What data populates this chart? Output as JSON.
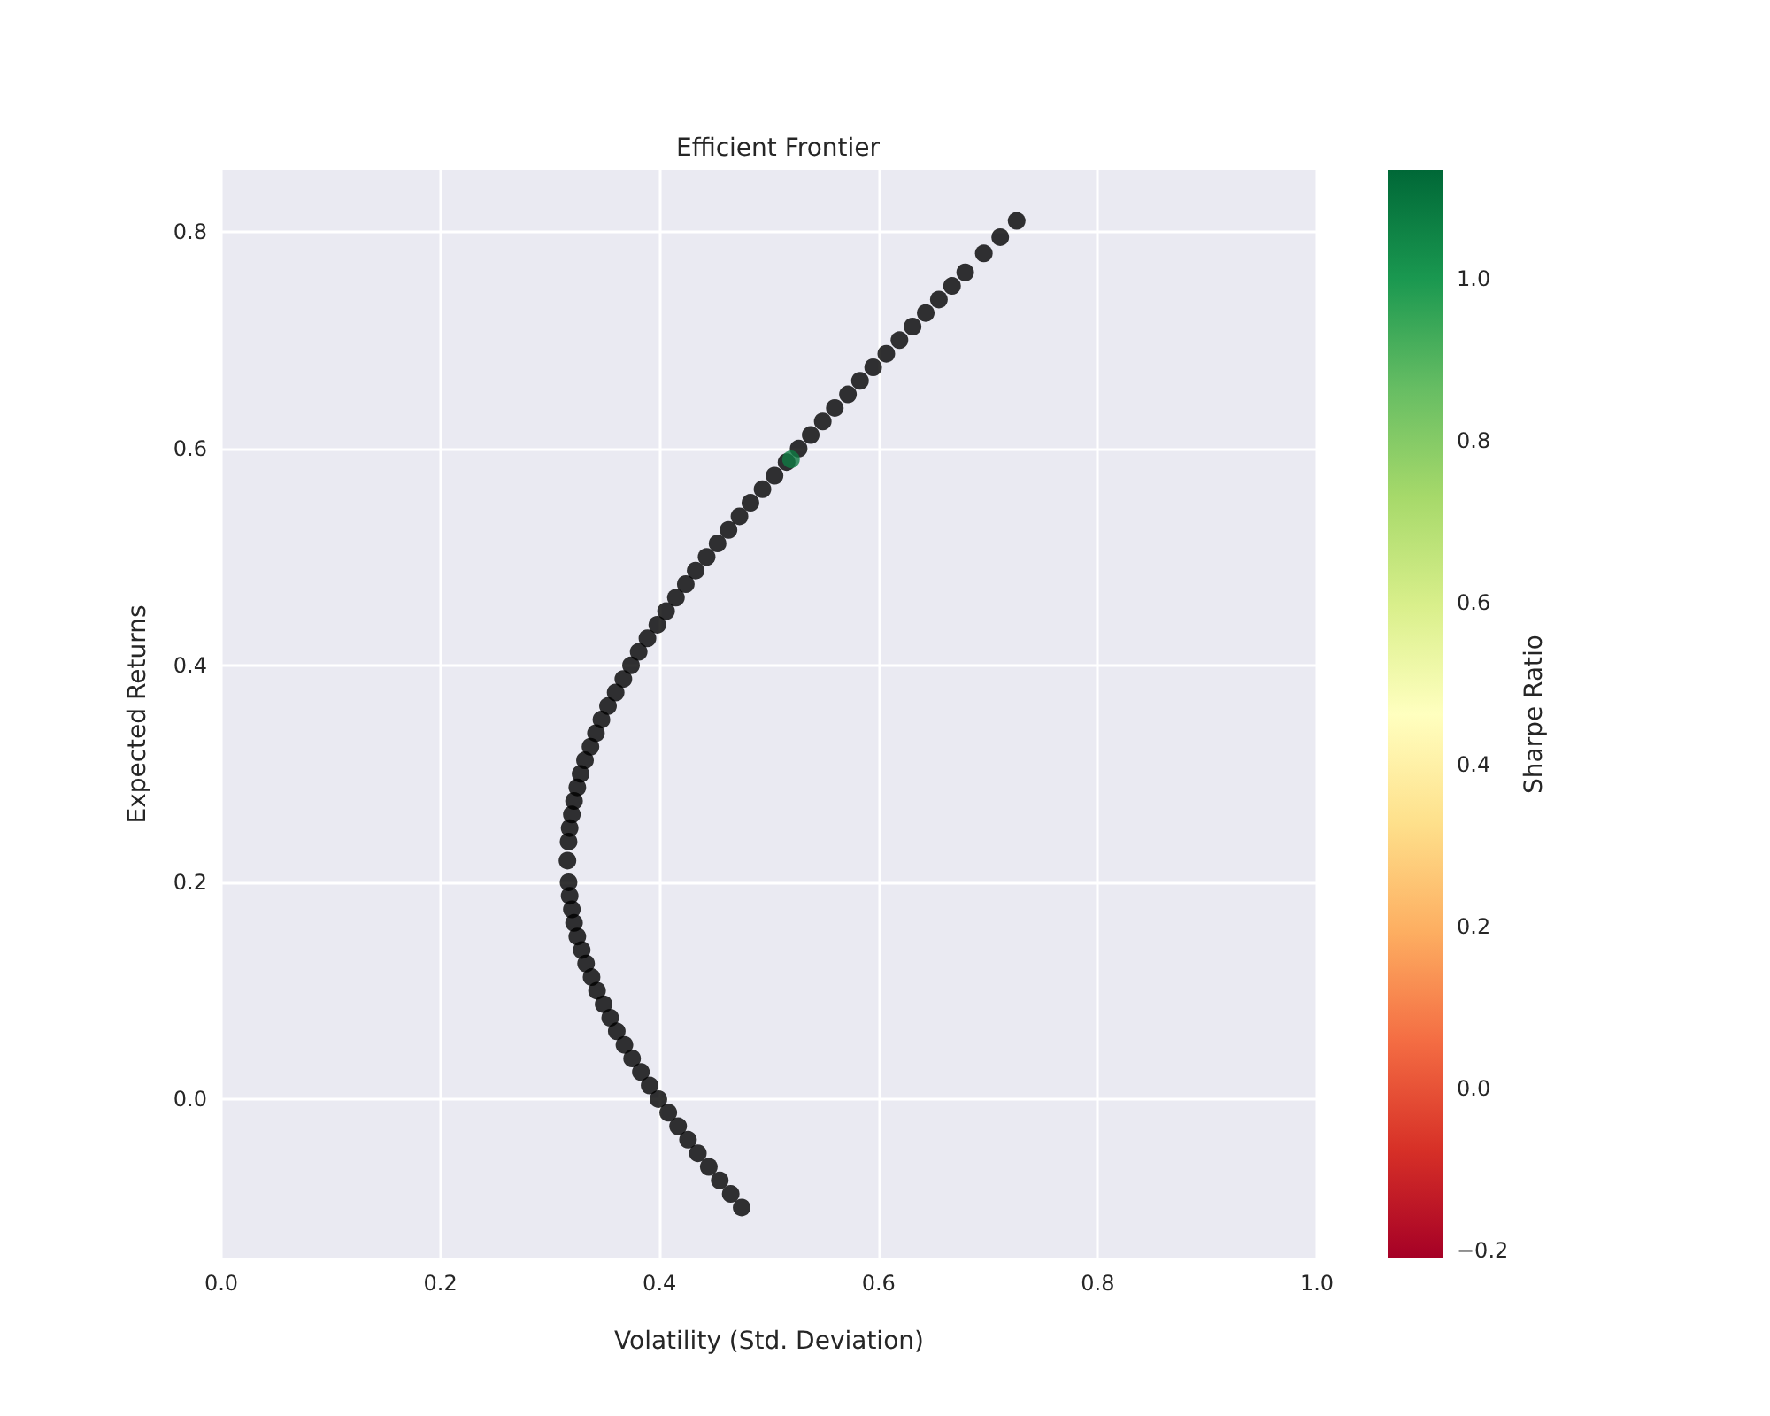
{
  "chart_data": {
    "type": "scatter",
    "title": "Efficient Frontier",
    "xlabel": "Volatility (Std. Deviation)",
    "ylabel": "Expected Returns",
    "clabel": "Sharpe Ratio",
    "xlim": [
      0,
      1
    ],
    "xticks": [
      {
        "value": 0,
        "label": "0.0"
      },
      {
        "value": 0.2,
        "label": "0.2"
      },
      {
        "value": 0.4,
        "label": "0.4"
      },
      {
        "value": 0.6,
        "label": "0.6"
      },
      {
        "value": 0.8,
        "label": "0.8"
      },
      {
        "value": 1,
        "label": "1.0"
      }
    ],
    "ylim": [
      -0.147,
      0.857
    ],
    "yticks": [
      {
        "value": 0,
        "label": "0.0"
      },
      {
        "value": 0.2,
        "label": "0.2"
      },
      {
        "value": 0.4,
        "label": "0.4"
      },
      {
        "value": 0.6,
        "label": "0.6"
      },
      {
        "value": 0.8,
        "label": "0.8"
      }
    ],
    "clim": [
      -0.21,
      1.135
    ],
    "cticks": [
      {
        "value": -0.2,
        "label": "−0.2"
      },
      {
        "value": 0,
        "label": "0.0"
      },
      {
        "value": 0.2,
        "label": "0.2"
      },
      {
        "value": 0.4,
        "label": "0.4"
      },
      {
        "value": 0.6,
        "label": "0.6"
      },
      {
        "value": 0.8,
        "label": "0.8"
      },
      {
        "value": 1,
        "label": "1.0"
      }
    ],
    "grid": true,
    "marker": "circle",
    "series": [
      {
        "color": "#000000",
        "x": [
          0.475,
          0.455,
          0.435,
          0.417,
          0.399,
          0.383,
          0.368,
          0.355,
          0.343,
          0.333,
          0.325,
          0.32,
          0.317,
          0.316,
          0.318,
          0.322,
          0.328,
          0.337,
          0.347,
          0.36,
          0.374,
          0.389,
          0.406,
          0.424,
          0.443,
          0.463,
          0.483,
          0.505,
          0.527,
          0.549,
          0.572,
          0.595,
          0.619,
          0.643,
          0.667,
          0.696,
          0.726,
          0.465,
          0.445,
          0.426,
          0.408,
          0.391,
          0.375,
          0.361,
          0.349,
          0.338,
          0.329,
          0.322,
          0.318,
          0.317,
          0.32,
          0.325,
          0.332,
          0.342,
          0.353,
          0.367,
          0.381,
          0.398,
          0.415,
          0.433,
          0.453,
          0.473,
          0.494,
          0.516,
          0.538,
          0.56,
          0.583,
          0.607,
          0.631,
          0.655,
          0.679,
          0.711
        ],
        "values": [
          -0.1,
          -0.075,
          -0.05,
          -0.025,
          0,
          0.025,
          0.05,
          0.075,
          0.1,
          0.125,
          0.15,
          0.175,
          0.2,
          0.22,
          0.25,
          0.275,
          0.3,
          0.325,
          0.35,
          0.375,
          0.4,
          0.425,
          0.45,
          0.475,
          0.5,
          0.525,
          0.55,
          0.575,
          0.6,
          0.625,
          0.65,
          0.675,
          0.7,
          0.725,
          0.75,
          0.78,
          0.81,
          -0.0875,
          -0.0625,
          -0.0375,
          -0.0125,
          0.0125,
          0.0375,
          0.0625,
          0.0875,
          0.1125,
          0.1375,
          0.1625,
          0.1875,
          0.2375,
          0.2625,
          0.2875,
          0.3125,
          0.3375,
          0.3625,
          0.3875,
          0.4125,
          0.4375,
          0.4625,
          0.4875,
          0.5125,
          0.5375,
          0.5625,
          0.5875,
          0.6125,
          0.6375,
          0.6625,
          0.6875,
          0.7125,
          0.7375,
          0.7625,
          0.795
        ]
      },
      {
        "color": "#0f7a43",
        "x": [
          0.52
        ],
        "values": [
          0.59
        ]
      }
    ]
  }
}
